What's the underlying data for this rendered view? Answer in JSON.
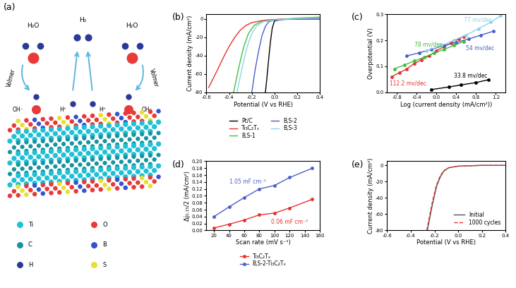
{
  "diagram": {
    "title": "(a)",
    "molecules": [
      "H₂O",
      "H₂",
      "H₂O"
    ],
    "reaction_labels": [
      "Volmer",
      "Volmer"
    ],
    "ions": [
      "OH⁻",
      "H⁺",
      "H⁺",
      "OH⁻"
    ],
    "atoms": [
      {
        "name": "Ti",
        "color": "#22c0d6"
      },
      {
        "name": "C",
        "color": "#17959f"
      },
      {
        "name": "H",
        "color": "#2a3a9a"
      },
      {
        "name": "O",
        "color": "#e83a3a"
      },
      {
        "name": "B",
        "color": "#3355cc"
      },
      {
        "name": "S",
        "color": "#e8e030"
      }
    ]
  },
  "chart_data": [
    {
      "type": "line",
      "title": "(b)",
      "x_label": "Potential (V vs RHE)",
      "y_label": "Current density (mA/cm²)",
      "xlim": [
        -0.6,
        0.4
      ],
      "xticks": [
        -0.6,
        -0.4,
        -0.2,
        0.0,
        0.2,
        0.4
      ],
      "ylim": [
        -80,
        5
      ],
      "yticks": [
        -80,
        -60,
        -40,
        -20,
        0
      ],
      "legend": "bottom",
      "series": [
        {
          "name": "Pt/C",
          "color": "#000000",
          "line_style": "solid",
          "x": [
            -0.08,
            -0.065,
            -0.05,
            -0.035,
            -0.02,
            0.0,
            0.1,
            0.2,
            0.3,
            0.4
          ],
          "values": [
            -80,
            -62,
            -42,
            -24,
            -10,
            -2,
            0,
            0,
            0,
            0
          ]
        },
        {
          "name": "Ti₃C₂Tₓ",
          "color": "#e8312f",
          "line_style": "solid",
          "x": [
            -0.58,
            -0.5,
            -0.45,
            -0.4,
            -0.35,
            -0.3,
            -0.25,
            -0.2,
            -0.1,
            0.0,
            0.2,
            0.4
          ],
          "values": [
            -75,
            -55,
            -42,
            -30,
            -20,
            -12,
            -7,
            -4,
            -1.5,
            -0.5,
            0.5,
            1
          ]
        },
        {
          "name": "B,S-1",
          "color": "#3fbf3f",
          "line_style": "solid",
          "x": [
            -0.36,
            -0.33,
            -0.3,
            -0.27,
            -0.23,
            -0.18,
            -0.12,
            0.0,
            0.2,
            0.4
          ],
          "values": [
            -80,
            -62,
            -45,
            -30,
            -16,
            -7,
            -3,
            -1,
            1,
            2
          ]
        },
        {
          "name": "B,S-2",
          "color": "#4a5fc9",
          "line_style": "solid",
          "x": [
            -0.2,
            -0.17,
            -0.14,
            -0.11,
            -0.08,
            -0.05,
            0.0,
            0.2,
            0.4
          ],
          "values": [
            -80,
            -55,
            -35,
            -18,
            -8,
            -3,
            -1,
            0,
            0
          ]
        },
        {
          "name": "B,S-3",
          "color": "#8fd3ea",
          "line_style": "solid",
          "x": [
            -0.33,
            -0.3,
            -0.27,
            -0.24,
            -0.2,
            -0.16,
            -0.1,
            0.0,
            0.2,
            0.4
          ],
          "values": [
            -80,
            -62,
            -45,
            -30,
            -16,
            -8,
            -3,
            -1,
            0.5,
            1
          ]
        }
      ]
    },
    {
      "type": "line",
      "title": "(c)",
      "x_label": "Log (current density (mA/cm²))",
      "y_label": "Overpotential (V)",
      "xlim": [
        -1.0,
        1.4
      ],
      "xticks": [
        -0.8,
        -0.4,
        0.0,
        0.4,
        0.8,
        1.2
      ],
      "ylim": [
        0.0,
        0.3
      ],
      "yticks": [
        0.0,
        0.1,
        0.2,
        0.3
      ],
      "series": [
        {
          "color": "#000000",
          "marker": "o",
          "line_style": "solid",
          "x": [
            -0.1,
            0.25,
            0.5,
            0.8,
            1.05
          ],
          "values": [
            0.01,
            0.02,
            0.028,
            0.037,
            0.048
          ]
        },
        {
          "color": "#e8312f",
          "marker": "o",
          "line_style": "solid",
          "x": [
            -0.9,
            -0.75,
            -0.6,
            -0.45,
            -0.3,
            -0.15,
            0.0,
            0.15,
            0.3,
            0.45,
            0.55
          ],
          "values": [
            0.06,
            0.075,
            0.09,
            0.11,
            0.125,
            0.14,
            0.16,
            0.175,
            0.19,
            0.205,
            0.215
          ]
        },
        {
          "color": "#3fbf3f",
          "marker": "o",
          "line_style": "solid",
          "x": [
            -0.85,
            -0.65,
            -0.45,
            -0.25,
            -0.05,
            0.15,
            0.35,
            0.55
          ],
          "values": [
            0.09,
            0.105,
            0.12,
            0.135,
            0.15,
            0.165,
            0.18,
            0.195
          ]
        },
        {
          "color": "#4a5fc9",
          "marker": "o",
          "line_style": "solid",
          "x": [
            -0.6,
            -0.35,
            -0.1,
            0.15,
            0.4,
            0.65,
            0.9,
            1.15
          ],
          "values": [
            0.14,
            0.152,
            0.165,
            0.18,
            0.192,
            0.205,
            0.22,
            0.235
          ]
        },
        {
          "color": "#8fd3ea",
          "marker": "o",
          "line_style": "solid",
          "x": [
            -0.2,
            0.1,
            0.35,
            0.6,
            0.85,
            1.1,
            1.3
          ],
          "values": [
            0.16,
            0.18,
            0.2,
            0.22,
            0.245,
            0.27,
            0.295
          ]
        }
      ],
      "annotations": [
        {
          "text": "77 mv/dec",
          "x": 0.55,
          "y": 0.28,
          "color": "#8fd3ea"
        },
        {
          "text": "78 mv/dec",
          "x": -0.45,
          "y": 0.185,
          "color": "#3fbf3f"
        },
        {
          "text": "54 mv/dec",
          "x": 0.6,
          "y": 0.17,
          "color": "#4a5fc9"
        },
        {
          "text": "112.2 mv/dec",
          "x": -0.95,
          "y": 0.035,
          "color": "#e8312f"
        },
        {
          "text": "33.8 mv/dec",
          "x": 0.35,
          "y": 0.065,
          "color": "#000000"
        }
      ]
    },
    {
      "type": "line",
      "title": "(d)",
      "x_label": "Scan rate (mV s⁻¹)",
      "y_label": "Δj₀.₁₅/2 (mA/cm²)",
      "xlim": [
        10,
        160
      ],
      "xticks": [
        20,
        40,
        60,
        80,
        100,
        120,
        140,
        160
      ],
      "ylim": [
        0.0,
        0.2
      ],
      "yticks": [
        {
          "value": 0.0,
          "label": "0.00"
        },
        {
          "value": 0.02,
          "label": "0.02"
        },
        {
          "value": 0.04,
          "label": "0.04"
        },
        {
          "value": 0.06,
          "label": "0.06"
        },
        {
          "value": 0.08,
          "label": "0.08"
        },
        {
          "value": 0.1,
          "label": "0.10"
        },
        {
          "value": 0.12,
          "label": "0.12"
        },
        {
          "value": 0.14,
          "label": "0.14"
        },
        {
          "value": 0.16,
          "label": "0.16"
        },
        {
          "value": 0.18,
          "label": "0.18"
        },
        {
          "value": 0.2,
          "label": "0.20"
        }
      ],
      "legend": "bottom",
      "series": [
        {
          "name": "Ti₃C₂Tₓ",
          "color": "#e8312f",
          "marker": "o",
          "line_style": "solid",
          "x": [
            20,
            40,
            60,
            80,
            100,
            120,
            150
          ],
          "values": [
            0.007,
            0.018,
            0.03,
            0.045,
            0.05,
            0.065,
            0.09
          ]
        },
        {
          "name": "B,S-2-Ti₃C₂Tₓ",
          "color": "#4a5fc9",
          "marker": "o",
          "line_style": "solid",
          "x": [
            20,
            40,
            60,
            80,
            100,
            120,
            150
          ],
          "values": [
            0.04,
            0.068,
            0.095,
            0.12,
            0.13,
            0.153,
            0.18
          ]
        }
      ],
      "annotations": [
        {
          "text": "1.05 mF cm⁻²",
          "x": 40,
          "y": 0.14,
          "color": "#4a5fc9"
        },
        {
          "text": "0.06 mF cm⁻²",
          "x": 95,
          "y": 0.025,
          "color": "#e8312f"
        }
      ]
    },
    {
      "type": "line",
      "title": "(e)",
      "x_label": "Potential (V vs RHE)",
      "y_label": "Current density (mA/cm²)",
      "xlim": [
        -0.6,
        0.4
      ],
      "xticks": [
        -0.6,
        -0.4,
        -0.2,
        0.0,
        0.2,
        0.4
      ],
      "ylim": [
        -80,
        5
      ],
      "yticks": [
        -80,
        -60,
        -40,
        -20,
        0
      ],
      "legend": "lower right",
      "series": [
        {
          "name": "Initial",
          "color": "#555555",
          "line_style": "solid",
          "x": [
            -0.26,
            -0.24,
            -0.22,
            -0.2,
            -0.18,
            -0.15,
            -0.12,
            -0.08,
            0.0,
            0.2,
            0.4
          ],
          "values": [
            -80,
            -65,
            -50,
            -37,
            -25,
            -14,
            -7,
            -3,
            -1,
            0,
            0
          ]
        },
        {
          "name": "1000 cycles",
          "color": "#e8312f",
          "line_style": "dashed",
          "x": [
            -0.265,
            -0.245,
            -0.225,
            -0.205,
            -0.185,
            -0.155,
            -0.125,
            -0.085,
            0.0,
            0.2,
            0.4
          ],
          "values": [
            -80,
            -65,
            -50,
            -37,
            -25,
            -14,
            -7,
            -3,
            -1,
            0,
            0
          ]
        }
      ]
    }
  ]
}
